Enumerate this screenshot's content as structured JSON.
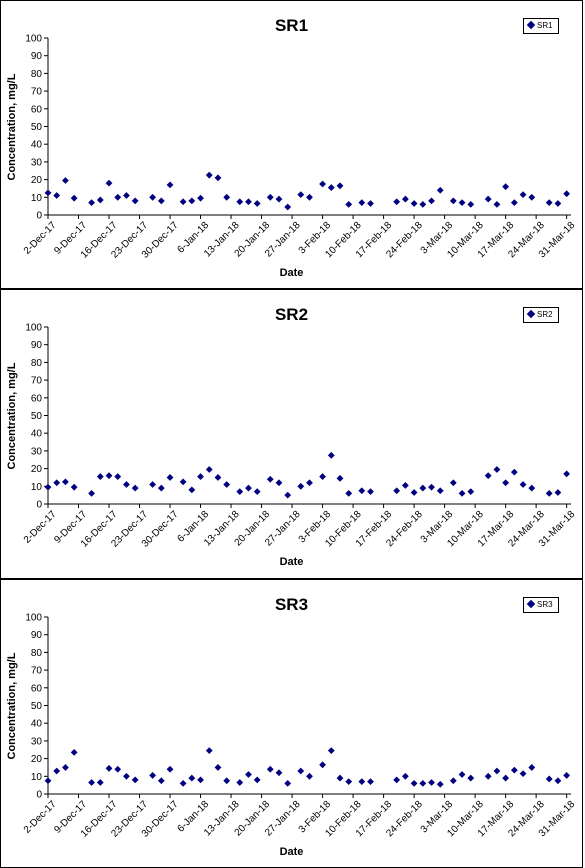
{
  "chart_data": [
    {
      "type": "scatter",
      "title": "SR1",
      "xlabel": "Date",
      "ylabel": "Concentration, mg/L",
      "ylim": [
        0,
        100
      ],
      "yticks": [
        "0",
        "10",
        "20",
        "30",
        "40",
        "50",
        "60",
        "70",
        "80",
        "90",
        "100"
      ],
      "xlim": [
        "2017-12-02",
        "2018-04-01"
      ],
      "xticks": [
        "2-Dec-17",
        "9-Dec-17",
        "16-Dec-17",
        "23-Dec-17",
        "30-Dec-17",
        "6-Jan-18",
        "13-Jan-18",
        "20-Jan-18",
        "27-Jan-18",
        "3-Feb-18",
        "10-Feb-18",
        "17-Feb-18",
        "24-Feb-18",
        "3-Mar-18",
        "10-Mar-18",
        "17-Mar-18",
        "24-Mar-18",
        "31-Mar-18"
      ],
      "grid": false,
      "legend_position": "top-right",
      "series": [
        {
          "name": "SR1",
          "color": "#000080",
          "x": [
            "2017-12-02",
            "2017-12-04",
            "2017-12-06",
            "2017-12-08",
            "2017-12-12",
            "2017-12-14",
            "2017-12-16",
            "2017-12-18",
            "2017-12-20",
            "2017-12-22",
            "2017-12-26",
            "2017-12-28",
            "2017-12-30",
            "2018-01-02",
            "2018-01-04",
            "2018-01-06",
            "2018-01-08",
            "2018-01-10",
            "2018-01-12",
            "2018-01-15",
            "2018-01-17",
            "2018-01-19",
            "2018-01-22",
            "2018-01-24",
            "2018-01-26",
            "2018-01-29",
            "2018-01-31",
            "2018-02-03",
            "2018-02-05",
            "2018-02-07",
            "2018-02-09",
            "2018-02-12",
            "2018-02-14",
            "2018-02-20",
            "2018-02-22",
            "2018-02-24",
            "2018-02-26",
            "2018-02-28",
            "2018-03-02",
            "2018-03-05",
            "2018-03-07",
            "2018-03-09",
            "2018-03-13",
            "2018-03-15",
            "2018-03-17",
            "2018-03-19",
            "2018-03-21",
            "2018-03-23",
            "2018-03-27",
            "2018-03-29",
            "2018-03-31"
          ],
          "values": [
            12.5,
            11,
            19.5,
            9.5,
            7,
            8.5,
            18,
            10,
            11,
            8,
            10,
            8,
            17,
            7.5,
            8,
            9.5,
            22.5,
            21,
            10,
            7.5,
            7.5,
            6.5,
            10,
            9,
            4.5,
            11.5,
            10,
            17.5,
            15.5,
            16.5,
            6,
            7,
            6.5,
            7.5,
            9,
            6.5,
            6,
            8,
            14,
            8,
            7,
            6,
            9,
            6,
            16,
            7,
            11.5,
            10,
            7,
            6.5,
            12
          ]
        }
      ]
    },
    {
      "type": "scatter",
      "title": "SR2",
      "xlabel": "Date",
      "ylabel": "Concentration, mg/L",
      "ylim": [
        0,
        100
      ],
      "yticks": [
        "0",
        "10",
        "20",
        "30",
        "40",
        "50",
        "60",
        "70",
        "80",
        "90",
        "100"
      ],
      "xlim": [
        "2017-12-02",
        "2018-04-01"
      ],
      "xticks": [
        "2-Dec-17",
        "9-Dec-17",
        "16-Dec-17",
        "23-Dec-17",
        "30-Dec-17",
        "6-Jan-18",
        "13-Jan-18",
        "20-Jan-18",
        "27-Jan-18",
        "3-Feb-18",
        "10-Feb-18",
        "17-Feb-18",
        "24-Feb-18",
        "3-Mar-18",
        "10-Mar-18",
        "17-Mar-18",
        "24-Mar-18",
        "31-Mar-18"
      ],
      "grid": false,
      "legend_position": "top-right",
      "series": [
        {
          "name": "SR2",
          "color": "#000080",
          "x": [
            "2017-12-02",
            "2017-12-04",
            "2017-12-06",
            "2017-12-08",
            "2017-12-12",
            "2017-12-14",
            "2017-12-16",
            "2017-12-18",
            "2017-12-20",
            "2017-12-22",
            "2017-12-26",
            "2017-12-28",
            "2017-12-30",
            "2018-01-02",
            "2018-01-04",
            "2018-01-06",
            "2018-01-08",
            "2018-01-10",
            "2018-01-12",
            "2018-01-15",
            "2018-01-17",
            "2018-01-19",
            "2018-01-22",
            "2018-01-24",
            "2018-01-26",
            "2018-01-29",
            "2018-01-31",
            "2018-02-03",
            "2018-02-05",
            "2018-02-07",
            "2018-02-09",
            "2018-02-12",
            "2018-02-14",
            "2018-02-20",
            "2018-02-22",
            "2018-02-24",
            "2018-02-26",
            "2018-02-28",
            "2018-03-02",
            "2018-03-05",
            "2018-03-07",
            "2018-03-09",
            "2018-03-13",
            "2018-03-15",
            "2018-03-17",
            "2018-03-19",
            "2018-03-21",
            "2018-03-23",
            "2018-03-27",
            "2018-03-29",
            "2018-03-31"
          ],
          "values": [
            9.5,
            12,
            12.5,
            9.5,
            6,
            15.5,
            16,
            15.5,
            11,
            9,
            11,
            9,
            15,
            12.5,
            8,
            15.5,
            19.5,
            15,
            11,
            7,
            9,
            7,
            14,
            12,
            5,
            10,
            12,
            15.5,
            27.5,
            14.5,
            6,
            7.5,
            7,
            7.5,
            10.5,
            6.5,
            9,
            9.5,
            7.5,
            12,
            6,
            7,
            16,
            19.5,
            12,
            18,
            11,
            9,
            6,
            6.5,
            17
          ]
        }
      ]
    },
    {
      "type": "scatter",
      "title": "SR3",
      "xlabel": "Date",
      "ylabel": "Concentration, mg/L",
      "ylim": [
        0,
        100
      ],
      "yticks": [
        "0",
        "10",
        "20",
        "30",
        "40",
        "50",
        "60",
        "70",
        "80",
        "90",
        "100"
      ],
      "xlim": [
        "2017-12-02",
        "2018-04-01"
      ],
      "xticks": [
        "2-Dec-17",
        "9-Dec-17",
        "16-Dec-17",
        "23-Dec-17",
        "30-Dec-17",
        "6-Jan-18",
        "13-Jan-18",
        "20-Jan-18",
        "27-Jan-18",
        "3-Feb-18",
        "10-Feb-18",
        "17-Feb-18",
        "24-Feb-18",
        "3-Mar-18",
        "10-Mar-18",
        "17-Mar-18",
        "24-Mar-18",
        "31-Mar-18"
      ],
      "grid": false,
      "legend_position": "top-right",
      "series": [
        {
          "name": "SR3",
          "color": "#000080",
          "x": [
            "2017-12-02",
            "2017-12-04",
            "2017-12-06",
            "2017-12-08",
            "2017-12-12",
            "2017-12-14",
            "2017-12-16",
            "2017-12-18",
            "2017-12-20",
            "2017-12-22",
            "2017-12-26",
            "2017-12-28",
            "2017-12-30",
            "2018-01-02",
            "2018-01-04",
            "2018-01-06",
            "2018-01-08",
            "2018-01-10",
            "2018-01-12",
            "2018-01-15",
            "2018-01-17",
            "2018-01-19",
            "2018-01-22",
            "2018-01-24",
            "2018-01-26",
            "2018-01-29",
            "2018-01-31",
            "2018-02-03",
            "2018-02-05",
            "2018-02-07",
            "2018-02-09",
            "2018-02-12",
            "2018-02-14",
            "2018-02-20",
            "2018-02-22",
            "2018-02-24",
            "2018-02-26",
            "2018-02-28",
            "2018-03-02",
            "2018-03-05",
            "2018-03-07",
            "2018-03-09",
            "2018-03-13",
            "2018-03-15",
            "2018-03-17",
            "2018-03-19",
            "2018-03-21",
            "2018-03-23",
            "2018-03-27",
            "2018-03-29",
            "2018-03-31"
          ],
          "values": [
            7.5,
            13,
            15,
            23.5,
            6.5,
            6.5,
            14.5,
            14,
            10,
            8,
            10.5,
            7.5,
            14,
            6,
            9,
            8,
            24.5,
            15,
            7.5,
            6.5,
            11,
            8,
            14,
            12,
            6,
            13,
            10,
            16.5,
            24.5,
            9,
            7,
            7,
            7,
            8,
            10,
            6,
            6,
            6.5,
            5.5,
            7.5,
            11,
            9,
            10,
            13,
            9,
            13.5,
            11.5,
            15,
            8.5,
            7.5,
            10.5
          ]
        }
      ]
    }
  ]
}
